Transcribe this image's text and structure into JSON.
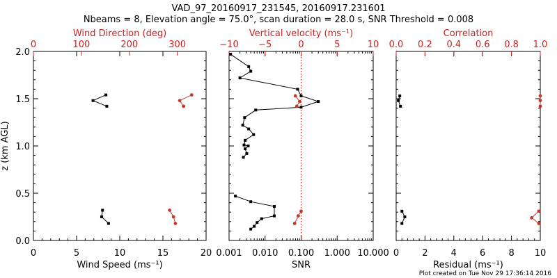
{
  "figure": {
    "title": "VAD_97_20160917_231545, 20160917.231601",
    "subtitle": "Nbeams = 8, Elevation angle = 75.0°, scan duration = 28.0 s, SNR Threshold = 0.008",
    "footer": "Plot created on Tue Nov 29 17:36:14 2016",
    "colors": {
      "black": "#000000",
      "red": "#cc2222",
      "marker_red": "#c0392b"
    }
  },
  "chart_data": [
    {
      "type": "line",
      "panel": "left",
      "xlabel": "Wind Speed (ms⁻¹)",
      "x2label": "Wind Direction (deg)",
      "ylabel": "z (km AGL)",
      "xlim": [
        0,
        20
      ],
      "x2lim": [
        0,
        360
      ],
      "ylim": [
        0,
        2
      ],
      "xticks": [
        "0",
        "5",
        "10",
        "15",
        "20"
      ],
      "x2ticks": [
        "0",
        "100",
        "200",
        "300"
      ],
      "yticks": [
        "0.0",
        "0.5",
        "1.0",
        "1.5",
        "2.0"
      ],
      "grid": false,
      "series": [
        {
          "axis": "bottom",
          "color": "#000000",
          "points": [
            [
              8.4,
              1.54
            ],
            [
              6.9,
              1.48
            ],
            [
              8.5,
              1.42
            ],
            [
              8.0,
              0.32
            ],
            [
              7.9,
              0.25
            ],
            [
              8.7,
              0.18
            ]
          ]
        },
        {
          "axis": "top",
          "color": "#c0392b",
          "points": [
            [
              330,
              1.54
            ],
            [
              305,
              1.48
            ],
            [
              313,
              1.42
            ],
            [
              284,
              0.32
            ],
            [
              292,
              0.25
            ],
            [
              296,
              0.18
            ]
          ]
        }
      ]
    },
    {
      "type": "line",
      "panel": "middle",
      "xlabel": "SNR",
      "x2label": "Vertical velocity (ms⁻¹)",
      "xscale": "log",
      "xlim": [
        0.001,
        10
      ],
      "x2lim": [
        -10,
        10
      ],
      "ylim": [
        0,
        2
      ],
      "xticks": [
        "0.001",
        "0.010",
        "0.100",
        "1.000",
        "10.000"
      ],
      "x2ticks": [
        "−10",
        "−5",
        "0",
        "5",
        "10"
      ],
      "reference_line": {
        "axis": "top",
        "value": 0,
        "style": "dotted"
      },
      "series": [
        {
          "axis": "bottom",
          "color": "#000000",
          "points": [
            [
              0.0011,
              1.97
            ],
            [
              0.0035,
              1.84
            ],
            [
              0.004,
              1.79
            ],
            [
              0.002,
              1.72
            ],
            [
              0.08,
              1.6
            ],
            [
              0.1,
              1.53
            ],
            [
              0.3,
              1.47
            ],
            [
              0.1,
              1.41
            ],
            [
              0.0055,
              1.38
            ],
            [
              0.0027,
              1.3
            ],
            [
              0.0024,
              1.22
            ],
            [
              0.0035,
              1.18
            ],
            [
              0.0048,
              1.12
            ],
            [
              0.0028,
              1.06
            ],
            [
              0.0026,
              1.01
            ],
            [
              0.0034,
              1.0
            ],
            [
              0.0028,
              0.97
            ],
            [
              0.0031,
              0.92
            ],
            [
              0.0025,
              0.88
            ],
            [
              0.0015,
              0.47
            ],
            [
              0.004,
              0.41
            ],
            [
              0.018,
              0.36
            ],
            [
              0.018,
              0.26
            ],
            [
              0.008,
              0.23
            ],
            [
              0.006,
              0.19
            ],
            [
              0.005,
              0.15
            ],
            [
              0.004,
              0.12
            ]
          ]
        },
        {
          "axis": "top",
          "color": "#c0392b",
          "points": [
            [
              -0.8,
              1.53
            ],
            [
              -0.2,
              1.47
            ],
            [
              -0.6,
              1.42
            ],
            [
              0.0,
              0.31
            ],
            [
              -0.4,
              0.26
            ],
            [
              -0.9,
              0.18
            ]
          ]
        }
      ]
    },
    {
      "type": "line",
      "panel": "right",
      "xlabel": "Residual (ms⁻¹)",
      "x2label": "Correlation",
      "xlim": [
        0,
        10
      ],
      "x2lim": [
        0,
        1
      ],
      "ylim": [
        0,
        2
      ],
      "xticks": [
        "0",
        "2",
        "4",
        "6",
        "8",
        "10"
      ],
      "x2ticks": [
        "0.0",
        "0.2",
        "0.4",
        "0.6",
        "0.8",
        "1.0"
      ],
      "series": [
        {
          "axis": "bottom",
          "color": "#000000",
          "points": [
            [
              0.25,
              1.53
            ],
            [
              0.15,
              1.48
            ],
            [
              0.3,
              1.42
            ],
            [
              0.4,
              0.31
            ],
            [
              0.6,
              0.25
            ],
            [
              0.4,
              0.18
            ]
          ]
        },
        {
          "axis": "top",
          "color": "#c0392b",
          "points": [
            [
              1.0,
              1.53
            ],
            [
              1.0,
              1.48
            ],
            [
              1.0,
              1.42
            ],
            [
              0.99,
              0.31
            ],
            [
              0.94,
              0.24
            ],
            [
              0.99,
              0.18
            ]
          ]
        }
      ]
    }
  ]
}
